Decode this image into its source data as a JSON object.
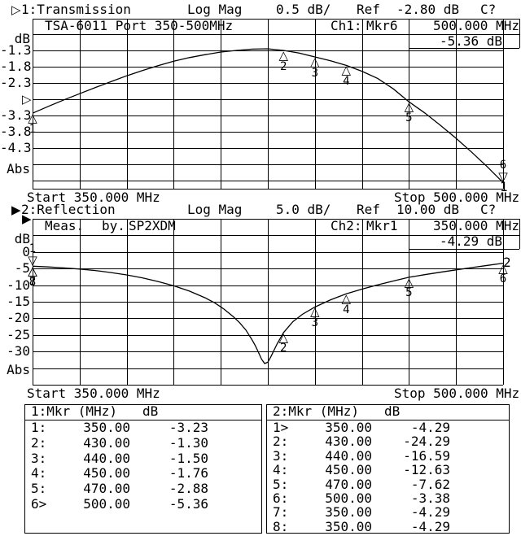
{
  "colors": {
    "foreground": "#000000",
    "background": "#ffffff"
  },
  "titles": {
    "ch1": {
      "arrow": "▷",
      "channel": "1:Transmission",
      "format": "Log Mag",
      "scale": "0.5 dB/",
      "ref_label": "Ref",
      "ref_value": "-2.80 dB",
      "cal": "C?"
    },
    "ch2": {
      "arrow": "▶",
      "channel": "2:Reflection",
      "format": "Log Mag",
      "scale": "5.0 dB/",
      "ref_label": "Ref",
      "ref_value": "10.00 dB",
      "cal": "C?"
    }
  },
  "plot1": {
    "ref_arrow": "▷",
    "band": {
      "label": "TSA-6011 Port 350-500MHz",
      "ch": "Ch1:",
      "mkr": "Mkr6",
      "mkr_freq": "500.000 MHz",
      "mkr_value": "-5.36 dB"
    },
    "axis": {
      "unit": "dB",
      "labels": [
        "-1.3",
        "-1.8",
        "-2.3",
        "-3.3",
        "-3.8",
        "-4.3"
      ],
      "abs": "Abs"
    },
    "start": "Start 350.000 MHz",
    "stop": "Stop 500.000 MHz",
    "trace_number": "1"
  },
  "plot2": {
    "ref_arrow": "▶",
    "band": {
      "cell1": "Meas.",
      "cell2": "by.",
      "cell3": "SP2XDM",
      "ch": "Ch2:",
      "mkr": "Mkr1",
      "mkr_freq": "350.000 MHz",
      "mkr_value": "-4.29 dB"
    },
    "axis": {
      "unit": "dB",
      "labels": [
        "0",
        "-5",
        "-10",
        "-15",
        "-20",
        "-25",
        "-30"
      ],
      "abs": "Abs"
    },
    "start": "Start 350.000 MHz",
    "stop": "Stop 500.000 MHz",
    "trace_number": "2"
  },
  "marker_tables": [
    {
      "header": {
        "col1": "1:Mkr (MHz)",
        "col2": "dB"
      },
      "rows": [
        {
          "n": "1:",
          "mhz": "350.00",
          "db": "-3.23"
        },
        {
          "n": "2:",
          "mhz": "430.00",
          "db": "-1.30"
        },
        {
          "n": "3:",
          "mhz": "440.00",
          "db": "-1.50"
        },
        {
          "n": "4:",
          "mhz": "450.00",
          "db": "-1.76"
        },
        {
          "n": "5:",
          "mhz": "470.00",
          "db": "-2.88"
        },
        {
          "n": "6>",
          "mhz": "500.00",
          "db": "-5.36"
        }
      ]
    },
    {
      "header": {
        "col1": "2:Mkr (MHz)",
        "col2": "dB"
      },
      "rows": [
        {
          "n": "1>",
          "mhz": "350.00",
          "db": "-4.29"
        },
        {
          "n": "2:",
          "mhz": "430.00",
          "db": "-24.29"
        },
        {
          "n": "3:",
          "mhz": "440.00",
          "db": "-16.59"
        },
        {
          "n": "4:",
          "mhz": "450.00",
          "db": "-12.63"
        },
        {
          "n": "5:",
          "mhz": "470.00",
          "db": "-7.62"
        },
        {
          "n": "6:",
          "mhz": "500.00",
          "db": "-3.38"
        },
        {
          "n": "7:",
          "mhz": "350.00",
          "db": "-4.29"
        },
        {
          "n": "8:",
          "mhz": "350.00",
          "db": "-4.29"
        }
      ]
    }
  ],
  "chart_data": [
    {
      "type": "line",
      "title": "1:Transmission",
      "format": "Log Mag",
      "scale_db_per_div": 0.5,
      "ref_db": -2.8,
      "x_range": [
        350,
        500
      ],
      "x_unit": "MHz",
      "y_unit": "dB",
      "ylim": [
        -5.3,
        -0.3
      ],
      "series": [
        {
          "name": "trace1",
          "x": [
            350,
            355,
            360,
            365,
            370,
            375,
            380,
            385,
            390,
            395,
            400,
            405,
            410,
            415,
            420,
            425,
            430,
            435,
            440,
            445,
            450,
            455,
            460,
            465,
            470,
            475,
            480,
            485,
            490,
            495,
            500
          ],
          "y": [
            -3.23,
            -3.02,
            -2.82,
            -2.63,
            -2.44,
            -2.26,
            -2.08,
            -1.92,
            -1.77,
            -1.63,
            -1.52,
            -1.43,
            -1.35,
            -1.3,
            -1.26,
            -1.25,
            -1.3,
            -1.38,
            -1.5,
            -1.62,
            -1.76,
            -1.94,
            -2.16,
            -2.48,
            -2.88,
            -3.22,
            -3.6,
            -4.0,
            -4.43,
            -4.88,
            -5.36
          ]
        }
      ],
      "markers": [
        {
          "n": "1",
          "mhz": 350,
          "db": -3.23,
          "shape": "up",
          "active": false
        },
        {
          "n": "2",
          "mhz": 430,
          "db": -1.3,
          "shape": "up",
          "active": false
        },
        {
          "n": "3",
          "mhz": 440,
          "db": -1.5,
          "shape": "up",
          "active": false
        },
        {
          "n": "4",
          "mhz": 450,
          "db": -1.76,
          "shape": "up",
          "active": false
        },
        {
          "n": "5",
          "mhz": 470,
          "db": -2.88,
          "shape": "up",
          "active": false
        },
        {
          "n": "6",
          "mhz": 500,
          "db": -5.36,
          "shape": "down",
          "active": true
        }
      ]
    },
    {
      "type": "line",
      "title": "2:Reflection",
      "format": "Log Mag",
      "scale_db_per_div": 5.0,
      "ref_db": 10.0,
      "x_range": [
        350,
        500
      ],
      "x_unit": "MHz",
      "y_unit": "dB",
      "ylim": [
        -40,
        10
      ],
      "series": [
        {
          "name": "trace2",
          "x": [
            350,
            355,
            360,
            365,
            370,
            375,
            380,
            385,
            390,
            395,
            400,
            405,
            408,
            411,
            414,
            416,
            418,
            420,
            421,
            422,
            423,
            424,
            425,
            426,
            428,
            430,
            433,
            436,
            440,
            445,
            450,
            455,
            460,
            465,
            470,
            475,
            480,
            485,
            490,
            495,
            500
          ],
          "y": [
            -4.29,
            -4.5,
            -4.8,
            -5.15,
            -5.6,
            -6.2,
            -6.9,
            -7.8,
            -8.9,
            -10.2,
            -11.8,
            -13.8,
            -15.3,
            -17.2,
            -19.5,
            -21.3,
            -23.5,
            -26.5,
            -28.2,
            -30.2,
            -32.3,
            -33.6,
            -33.2,
            -31.5,
            -27.6,
            -24.29,
            -21.0,
            -18.8,
            -16.59,
            -14.4,
            -12.63,
            -11.2,
            -9.9,
            -8.75,
            -7.62,
            -6.85,
            -6.1,
            -5.4,
            -4.7,
            -4.05,
            -3.38
          ]
        }
      ],
      "markers": [
        {
          "n": "1",
          "mhz": 350,
          "db": -4.29,
          "shape": "down",
          "active": true
        },
        {
          "n": "2",
          "mhz": 430,
          "db": -24.29,
          "shape": "up",
          "active": false
        },
        {
          "n": "3",
          "mhz": 440,
          "db": -16.59,
          "shape": "up",
          "active": false
        },
        {
          "n": "4",
          "mhz": 450,
          "db": -12.63,
          "shape": "up",
          "active": false
        },
        {
          "n": "5",
          "mhz": 470,
          "db": -7.62,
          "shape": "up",
          "active": false
        },
        {
          "n": "6",
          "mhz": 500,
          "db": -3.38,
          "shape": "up",
          "active": false
        },
        {
          "n": "7",
          "mhz": 350,
          "db": -4.29,
          "shape": "up",
          "active": false
        },
        {
          "n": "8",
          "mhz": 350,
          "db": -4.29,
          "shape": "up",
          "active": false
        }
      ]
    }
  ]
}
